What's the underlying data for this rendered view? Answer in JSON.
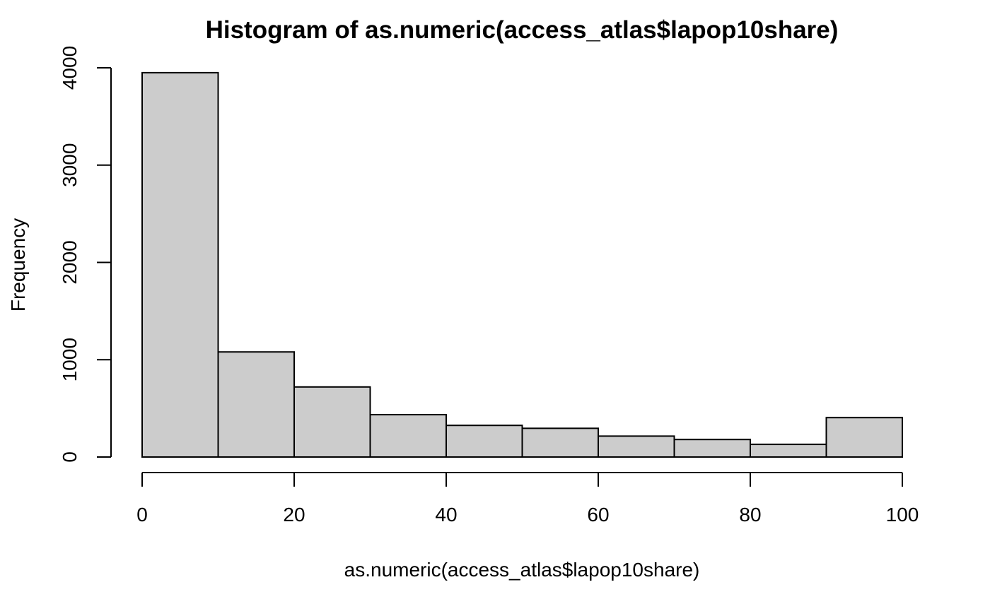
{
  "chart_data": {
    "type": "bar",
    "title": "Histogram of as.numeric(access_atlas$lapop10share)",
    "xlabel": "as.numeric(access_atlas$lapop10share)",
    "ylabel": "Frequency",
    "bins": [
      {
        "start": 0,
        "end": 10,
        "count": 3950
      },
      {
        "start": 10,
        "end": 20,
        "count": 1080
      },
      {
        "start": 20,
        "end": 30,
        "count": 720
      },
      {
        "start": 30,
        "end": 40,
        "count": 435
      },
      {
        "start": 40,
        "end": 50,
        "count": 325
      },
      {
        "start": 50,
        "end": 60,
        "count": 295
      },
      {
        "start": 60,
        "end": 70,
        "count": 215
      },
      {
        "start": 70,
        "end": 80,
        "count": 180
      },
      {
        "start": 80,
        "end": 90,
        "count": 130
      },
      {
        "start": 90,
        "end": 100,
        "count": 405
      }
    ],
    "xlim": [
      0,
      100
    ],
    "ylim": [
      0,
      4000
    ],
    "x_ticks": [
      0,
      20,
      40,
      60,
      80,
      100
    ],
    "y_ticks": [
      0,
      1000,
      2000,
      3000,
      4000
    ],
    "bar_fill": "#cccccc",
    "bar_stroke": "#000000",
    "grid": false,
    "legend": "none"
  }
}
